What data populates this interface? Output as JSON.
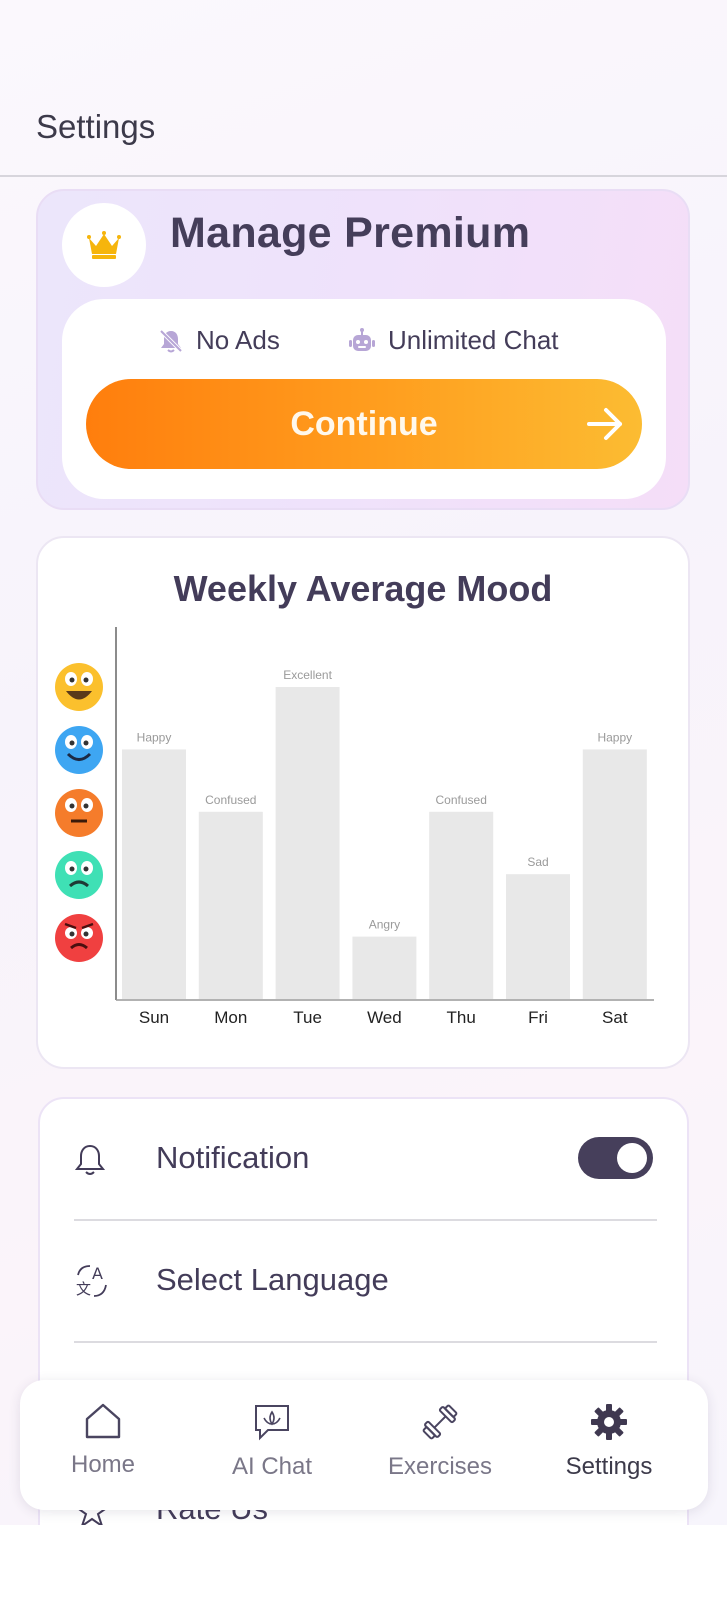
{
  "header": {
    "title": "Settings"
  },
  "premium": {
    "title": "Manage Premium",
    "features": [
      {
        "icon": "bell-off-icon",
        "label": "No Ads"
      },
      {
        "icon": "robot-icon",
        "label": "Unlimited Chat"
      }
    ],
    "continue_label": "Continue",
    "colors": {
      "gradient_start": "#ff7e0d",
      "gradient_end": "#fcbc32",
      "crown": "#f6b50c"
    }
  },
  "mood": {
    "title": "Weekly Average Mood",
    "levels": [
      "Excellent",
      "Happy",
      "Confused",
      "Sad",
      "Angry"
    ],
    "level_icons": [
      "excited-face-icon",
      "happy-face-icon",
      "confused-face-icon",
      "sad-face-icon",
      "angry-face-icon"
    ]
  },
  "chart_data": {
    "type": "bar",
    "title": "Weekly Average Mood",
    "categories": [
      "Sun",
      "Mon",
      "Tue",
      "Wed",
      "Thu",
      "Fri",
      "Sat"
    ],
    "values": [
      4,
      3,
      5,
      1,
      3,
      2,
      4
    ],
    "labels": [
      "Happy",
      "Confused",
      "Excellent",
      "Angry",
      "Confused",
      "Sad",
      "Happy"
    ],
    "ylim": [
      0,
      5
    ],
    "bar_color": "#e8e8e8"
  },
  "settings": {
    "items": [
      {
        "icon": "bell-icon",
        "label": "Notification",
        "toggle": true
      },
      {
        "icon": "translate-icon",
        "label": "Select Language"
      },
      {
        "icon": "star-icon",
        "label": "Rate Us"
      }
    ]
  },
  "nav": {
    "items": [
      {
        "icon": "home-icon",
        "label": "Home"
      },
      {
        "icon": "chat-bubble-icon",
        "label": "AI Chat"
      },
      {
        "icon": "dumbbell-icon",
        "label": "Exercises"
      },
      {
        "icon": "gear-icon",
        "label": "Settings",
        "active": true
      }
    ]
  }
}
